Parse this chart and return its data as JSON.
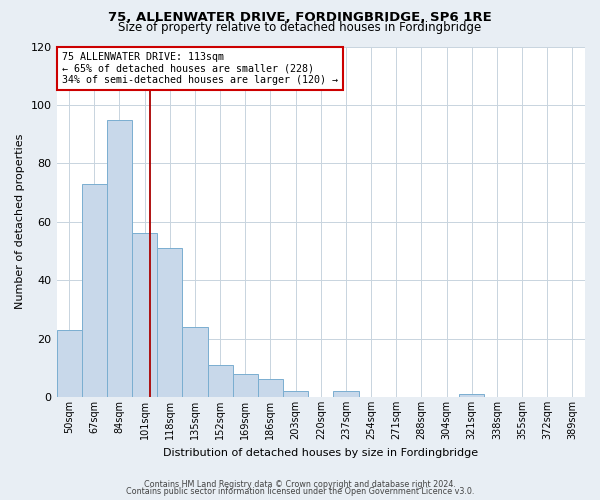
{
  "title": "75, ALLENWATER DRIVE, FORDINGBRIDGE, SP6 1RE",
  "subtitle": "Size of property relative to detached houses in Fordingbridge",
  "xlabel": "Distribution of detached houses by size in Fordingbridge",
  "ylabel": "Number of detached properties",
  "bin_labels": [
    "50sqm",
    "67sqm",
    "84sqm",
    "101sqm",
    "118sqm",
    "135sqm",
    "152sqm",
    "169sqm",
    "186sqm",
    "203sqm",
    "220sqm",
    "237sqm",
    "254sqm",
    "271sqm",
    "288sqm",
    "304sqm",
    "321sqm",
    "338sqm",
    "355sqm",
    "372sqm",
    "389sqm"
  ],
  "bar_values": [
    23,
    73,
    95,
    56,
    51,
    24,
    11,
    8,
    6,
    2,
    0,
    2,
    0,
    0,
    0,
    0,
    1,
    0,
    0,
    0,
    0
  ],
  "bar_color": "#c8d8ea",
  "bar_edge_color": "#7aaed0",
  "vline_color": "#aa0000",
  "ylim": [
    0,
    120
  ],
  "yticks": [
    0,
    20,
    40,
    60,
    80,
    100,
    120
  ],
  "annotation_title": "75 ALLENWATER DRIVE: 113sqm",
  "annotation_line1": "← 65% of detached houses are smaller (228)",
  "annotation_line2": "34% of semi-detached houses are larger (120) →",
  "annotation_box_color": "#ffffff",
  "annotation_box_edge": "#cc0000",
  "footer_line1": "Contains HM Land Registry data © Crown copyright and database right 2024.",
  "footer_line2": "Contains public sector information licensed under the Open Government Licence v3.0.",
  "background_color": "#e8eef4",
  "plot_background": "#ffffff",
  "grid_color": "#c8d4de"
}
